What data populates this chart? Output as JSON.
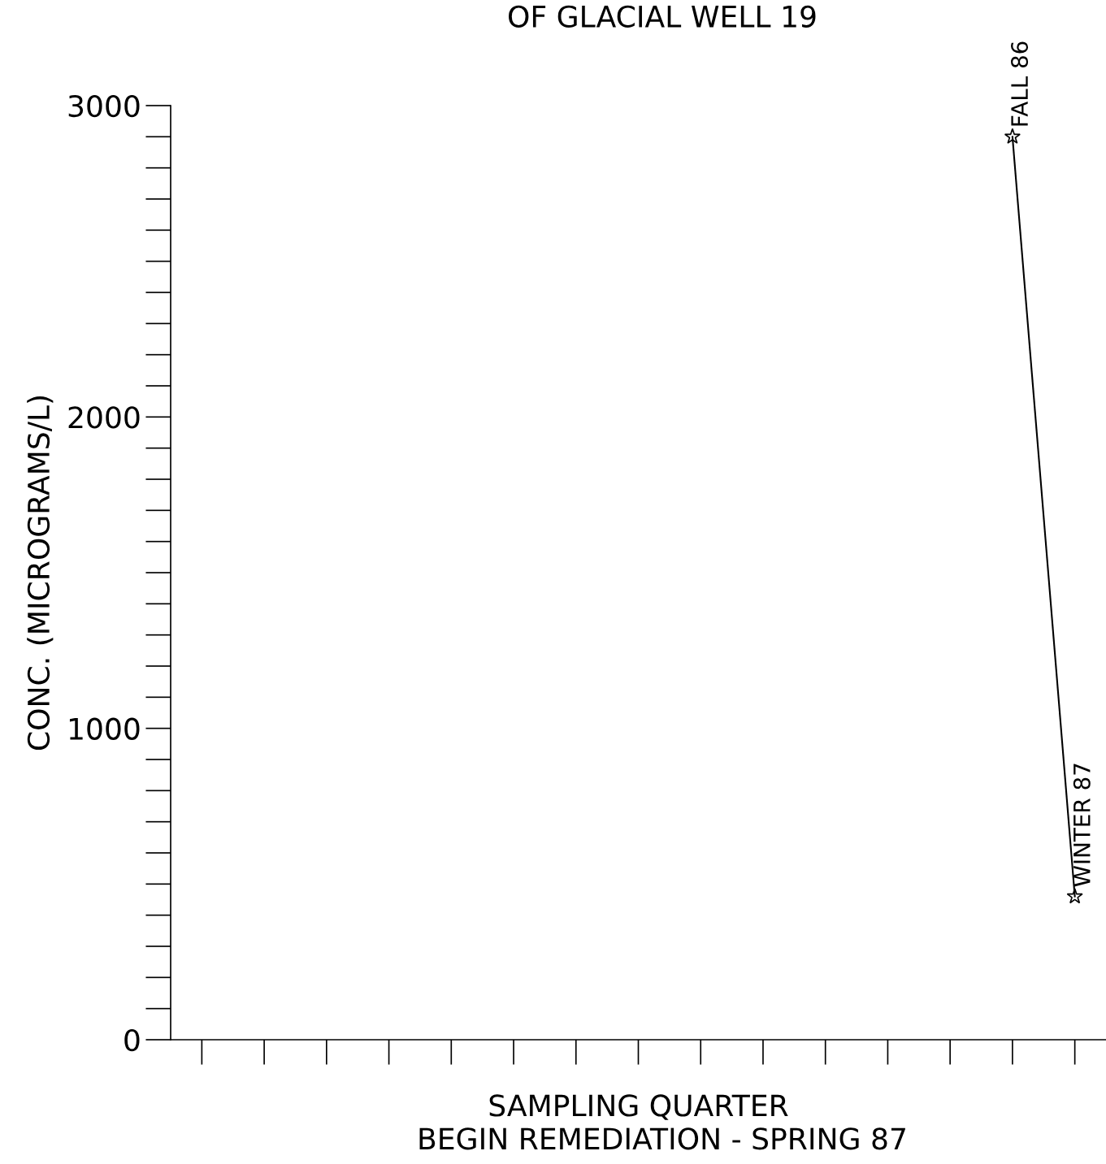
{
  "chart_data": {
    "type": "line",
    "title": "OF GLACIAL WELL 19",
    "xlabel": "SAMPLING QUARTER",
    "ylabel": "CONC. (MICROGRAMS/L)",
    "annotations": [
      "BEGIN REMEDIATION - SPRING 87"
    ],
    "categories": [
      null,
      null,
      null,
      null,
      null,
      null,
      null,
      null,
      null,
      null,
      null,
      null,
      null,
      null,
      null
    ],
    "values": [
      null,
      null,
      null,
      null,
      null,
      null,
      null,
      null,
      null,
      null,
      null,
      null,
      null,
      2900,
      460
    ],
    "value_labels": [
      null,
      null,
      null,
      null,
      null,
      null,
      null,
      null,
      null,
      null,
      null,
      null,
      null,
      "FALL 86",
      "WINTER 87"
    ],
    "color": "#000000",
    "marker": "star",
    "line_style": "solid",
    "grid": false,
    "legend": false,
    "ylim": [
      0,
      3000
    ],
    "yticks": [
      0,
      1000,
      2000,
      3000
    ]
  }
}
